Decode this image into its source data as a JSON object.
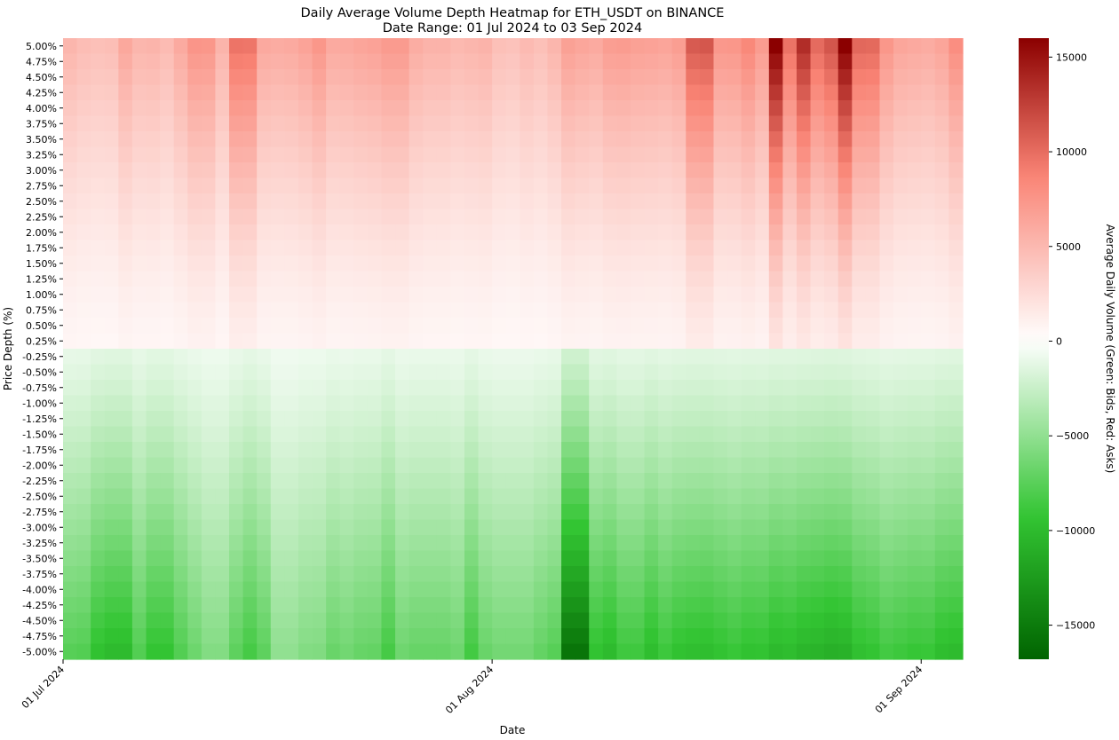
{
  "chart_data": {
    "type": "heatmap",
    "title": "Daily Average Volume Depth Heatmap for ETH_USDT on BINANCE",
    "subtitle": "Date Range: 01 Jul 2024 to 03 Sep 2024",
    "xlabel": "Date",
    "ylabel": "Price Depth (%)",
    "colorbar_label": "Average Daily Volume (Green: Bids, Red: Asks)",
    "date_start": "2024-07-01",
    "date_end": "2024-09-03",
    "x_ticks": [
      "01 Jul 2024",
      "01 Aug 2024",
      "01 Sep 2024"
    ],
    "y_labels": [
      "5.00%",
      "4.75%",
      "4.50%",
      "4.25%",
      "4.00%",
      "3.75%",
      "3.50%",
      "3.25%",
      "3.00%",
      "2.75%",
      "2.50%",
      "2.25%",
      "2.00%",
      "1.75%",
      "1.50%",
      "1.25%",
      "1.00%",
      "0.75%",
      "0.50%",
      "0.25%",
      "-0.25%",
      "-0.50%",
      "-0.75%",
      "-1.00%",
      "-1.25%",
      "-1.50%",
      "-1.75%",
      "-2.00%",
      "-2.25%",
      "-2.50%",
      "-2.75%",
      "-3.00%",
      "-3.25%",
      "-3.50%",
      "-3.75%",
      "-4.00%",
      "-4.25%",
      "-4.50%",
      "-4.75%",
      "-5.00%"
    ],
    "ask_levels_at_5pct": [
      5200,
      4700,
      4500,
      4600,
      6200,
      5200,
      5300,
      4800,
      6000,
      7500,
      7400,
      5300,
      9600,
      9500,
      6100,
      5900,
      6000,
      6500,
      7400,
      6000,
      6100,
      6400,
      6600,
      7100,
      7100,
      5800,
      5400,
      5400,
      5000,
      5200,
      5400,
      4500,
      4300,
      4900,
      4500,
      5200,
      6700,
      6300,
      6000,
      6900,
      7000,
      6700,
      6600,
      6400,
      6900,
      11000,
      11200,
      7300,
      7400,
      8400,
      7000,
      16000,
      9700,
      13500,
      10100,
      11300,
      16000,
      10300,
      10200,
      7400,
      6300,
      6100,
      5900,
      6400,
      8000
    ],
    "bid_levels_at_5pct": [
      -7600,
      -7800,
      -9500,
      -10000,
      -10000,
      -7800,
      -9300,
      -9300,
      -7800,
      -6600,
      -5600,
      -5600,
      -7300,
      -8400,
      -7300,
      -5000,
      -5000,
      -5600,
      -5700,
      -6800,
      -6400,
      -6900,
      -7000,
      -8400,
      -6500,
      -6900,
      -6900,
      -6900,
      -6500,
      -8500,
      -6800,
      -6300,
      -6300,
      -6300,
      -7000,
      -7600,
      -15500,
      -15500,
      -9400,
      -10000,
      -8700,
      -8700,
      -9800,
      -8800,
      -9500,
      -9700,
      -9800,
      -9400,
      -9000,
      -9500,
      -9400,
      -10100,
      -9900,
      -10400,
      -10600,
      -10900,
      -10700,
      -9600,
      -9300,
      -8500,
      -8800,
      -9100,
      -9000,
      -9800,
      -10000
    ],
    "colorbar": {
      "min": -16800,
      "max": 16000,
      "ticks": [
        15000,
        10000,
        5000,
        0,
        -5000,
        -10000,
        -15000
      ]
    },
    "colors": {
      "ask_max": "#8b0000",
      "ask_mid": "#f98374",
      "neutral": "#ffffff",
      "bid_mid": "#33c533",
      "bid_max": "#006400"
    },
    "grid": false
  }
}
